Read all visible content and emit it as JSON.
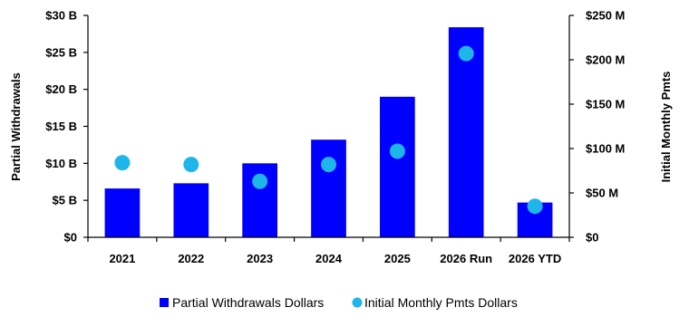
{
  "chart_data": {
    "type": "bar",
    "categories": [
      "2021",
      "2022",
      "2023",
      "2024",
      "2025",
      "2026 Run",
      "2026 YTD"
    ],
    "series": [
      {
        "name": "Partial Withdrawals Dollars",
        "type": "bar",
        "axis": "left",
        "unit": "B",
        "color": "#0000FF",
        "values": [
          6.6,
          7.3,
          10.0,
          13.2,
          19.0,
          28.4,
          4.7
        ]
      },
      {
        "name": "Initial Monthly Pmts Dollars",
        "type": "scatter",
        "axis": "right",
        "unit": "M",
        "color": "#1EB6E8",
        "values": [
          84,
          82,
          63,
          82,
          97,
          207,
          35
        ]
      }
    ],
    "y_left": {
      "label": "Partial Withdrawals",
      "range": [
        0,
        30
      ],
      "ticks": [
        0,
        5,
        10,
        15,
        20,
        25,
        30
      ],
      "tick_labels": [
        "$0",
        "$5 B",
        "$10 B",
        "$15 B",
        "$20 B",
        "$25 B",
        "$30 B"
      ]
    },
    "y_right": {
      "label": "Initial Monthly Pmts",
      "range": [
        0,
        250
      ],
      "ticks": [
        0,
        50,
        100,
        150,
        200,
        250
      ],
      "tick_labels": [
        "$0",
        "$50 M",
        "$100 M",
        "$150 M",
        "$200 M",
        "$250 M"
      ]
    },
    "grid": false,
    "legend_position": "bottom"
  }
}
